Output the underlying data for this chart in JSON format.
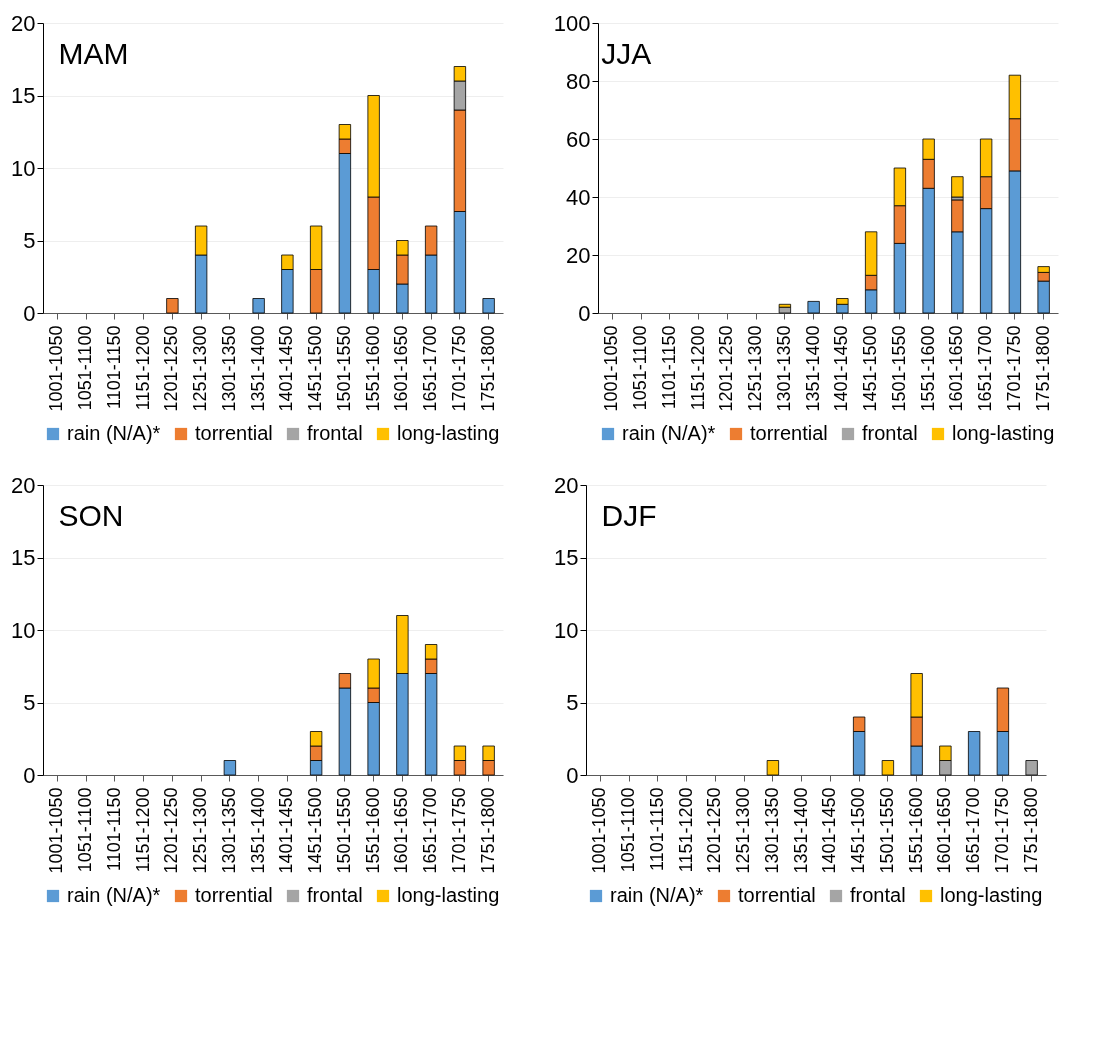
{
  "chart_data": [
    {
      "type": "bar",
      "title": "MAM",
      "stacked": true,
      "categories": [
        "1001-1050",
        "1051-1100",
        "1101-1150",
        "1151-1200",
        "1201-1250",
        "1251-1300",
        "1301-1350",
        "1351-1400",
        "1401-1450",
        "1451-1500",
        "1501-1550",
        "1551-1600",
        "1601-1650",
        "1651-1700",
        "1701-1750",
        "1751-1800"
      ],
      "series": [
        {
          "name": "rain (N/A)*",
          "color": "#5b9bd5",
          "values": [
            0,
            0,
            0,
            0,
            0,
            4,
            0,
            1,
            3,
            0,
            11,
            3,
            2,
            4,
            7,
            1
          ]
        },
        {
          "name": "torrential",
          "color": "#ed7d31",
          "values": [
            0,
            0,
            0,
            0,
            1,
            0,
            0,
            0,
            0,
            3,
            1,
            5,
            2,
            2,
            7,
            0
          ]
        },
        {
          "name": "frontal",
          "color": "#a5a5a5",
          "values": [
            0,
            0,
            0,
            0,
            0,
            0,
            0,
            0,
            0,
            0,
            0,
            0,
            0,
            0,
            2,
            0
          ]
        },
        {
          "name": "long-lasting",
          "color": "#ffc000",
          "values": [
            0,
            0,
            0,
            0,
            0,
            2,
            0,
            0,
            1,
            3,
            1,
            7,
            1,
            0,
            1,
            0
          ]
        }
      ],
      "ylim": [
        0,
        20
      ],
      "yticks": [
        0,
        5,
        10,
        15,
        20
      ],
      "grid": "y",
      "legend": "bottom"
    },
    {
      "type": "bar",
      "title": "JJA",
      "stacked": true,
      "categories": [
        "1001-1050",
        "1051-1100",
        "1101-1150",
        "1151-1200",
        "1201-1250",
        "1251-1300",
        "1301-1350",
        "1351-1400",
        "1401-1450",
        "1451-1500",
        "1501-1550",
        "1551-1600",
        "1601-1650",
        "1651-1700",
        "1701-1750",
        "1751-1800"
      ],
      "series": [
        {
          "name": "rain (N/A)*",
          "color": "#5b9bd5",
          "values": [
            0,
            0,
            0,
            0,
            0,
            0,
            0,
            4,
            3,
            8,
            24,
            43,
            28,
            36,
            49,
            11
          ]
        },
        {
          "name": "torrential",
          "color": "#ed7d31",
          "values": [
            0,
            0,
            0,
            0,
            0,
            0,
            0,
            0,
            0,
            5,
            13,
            10,
            11,
            11,
            18,
            3
          ]
        },
        {
          "name": "frontal",
          "color": "#a5a5a5",
          "values": [
            0,
            0,
            0,
            0,
            0,
            0,
            2,
            0,
            0,
            0,
            0,
            0,
            1,
            0,
            0,
            0
          ]
        },
        {
          "name": "long-lasting",
          "color": "#ffc000",
          "values": [
            0,
            0,
            0,
            0,
            0,
            0,
            1,
            0,
            2,
            15,
            13,
            7,
            7,
            13,
            15,
            2
          ]
        }
      ],
      "ylim": [
        0,
        100
      ],
      "yticks": [
        0,
        20,
        40,
        60,
        80,
        100
      ],
      "grid": "y",
      "legend": "bottom"
    },
    {
      "type": "bar",
      "title": "SON",
      "stacked": true,
      "categories": [
        "1001-1050",
        "1051-1100",
        "1101-1150",
        "1151-1200",
        "1201-1250",
        "1251-1300",
        "1301-1350",
        "1351-1400",
        "1401-1450",
        "1451-1500",
        "1501-1550",
        "1551-1600",
        "1601-1650",
        "1651-1700",
        "1701-1750",
        "1751-1800"
      ],
      "series": [
        {
          "name": "rain (N/A)*",
          "color": "#5b9bd5",
          "values": [
            0,
            0,
            0,
            0,
            0,
            0,
            1,
            0,
            0,
            1,
            6,
            5,
            7,
            7,
            0,
            0
          ]
        },
        {
          "name": "torrential",
          "color": "#ed7d31",
          "values": [
            0,
            0,
            0,
            0,
            0,
            0,
            0,
            0,
            0,
            1,
            1,
            1,
            0,
            1,
            1,
            1
          ]
        },
        {
          "name": "frontal",
          "color": "#a5a5a5",
          "values": [
            0,
            0,
            0,
            0,
            0,
            0,
            0,
            0,
            0,
            0,
            0,
            0,
            0,
            0,
            0,
            0
          ]
        },
        {
          "name": "long-lasting",
          "color": "#ffc000",
          "values": [
            0,
            0,
            0,
            0,
            0,
            0,
            0,
            0,
            0,
            1,
            0,
            2,
            4,
            1,
            1,
            1
          ]
        }
      ],
      "ylim": [
        0,
        20
      ],
      "yticks": [
        0,
        5,
        10,
        15,
        20
      ],
      "grid": "y",
      "legend": "bottom"
    },
    {
      "type": "bar",
      "title": "DJF",
      "stacked": true,
      "categories": [
        "1001-1050",
        "1051-1100",
        "1101-1150",
        "1151-1200",
        "1201-1250",
        "1251-1300",
        "1301-1350",
        "1351-1400",
        "1401-1450",
        "1451-1500",
        "1501-1550",
        "1551-1600",
        "1601-1650",
        "1651-1700",
        "1701-1750",
        "1751-1800"
      ],
      "series": [
        {
          "name": "rain (N/A)*",
          "color": "#5b9bd5",
          "values": [
            0,
            0,
            0,
            0,
            0,
            0,
            0,
            0,
            0,
            3,
            0,
            2,
            0,
            3,
            3,
            0
          ]
        },
        {
          "name": "torrential",
          "color": "#ed7d31",
          "values": [
            0,
            0,
            0,
            0,
            0,
            0,
            0,
            0,
            0,
            1,
            0,
            2,
            0,
            0,
            3,
            0
          ]
        },
        {
          "name": "frontal",
          "color": "#a5a5a5",
          "values": [
            0,
            0,
            0,
            0,
            0,
            0,
            0,
            0,
            0,
            0,
            0,
            0,
            1,
            0,
            0,
            1
          ]
        },
        {
          "name": "long-lasting",
          "color": "#ffc000",
          "values": [
            0,
            0,
            0,
            0,
            0,
            0,
            1,
            0,
            0,
            0,
            1,
            3,
            1,
            0,
            0,
            0
          ]
        }
      ],
      "ylim": [
        0,
        20
      ],
      "yticks": [
        0,
        5,
        10,
        15,
        20
      ],
      "grid": "y",
      "legend": "bottom"
    }
  ]
}
